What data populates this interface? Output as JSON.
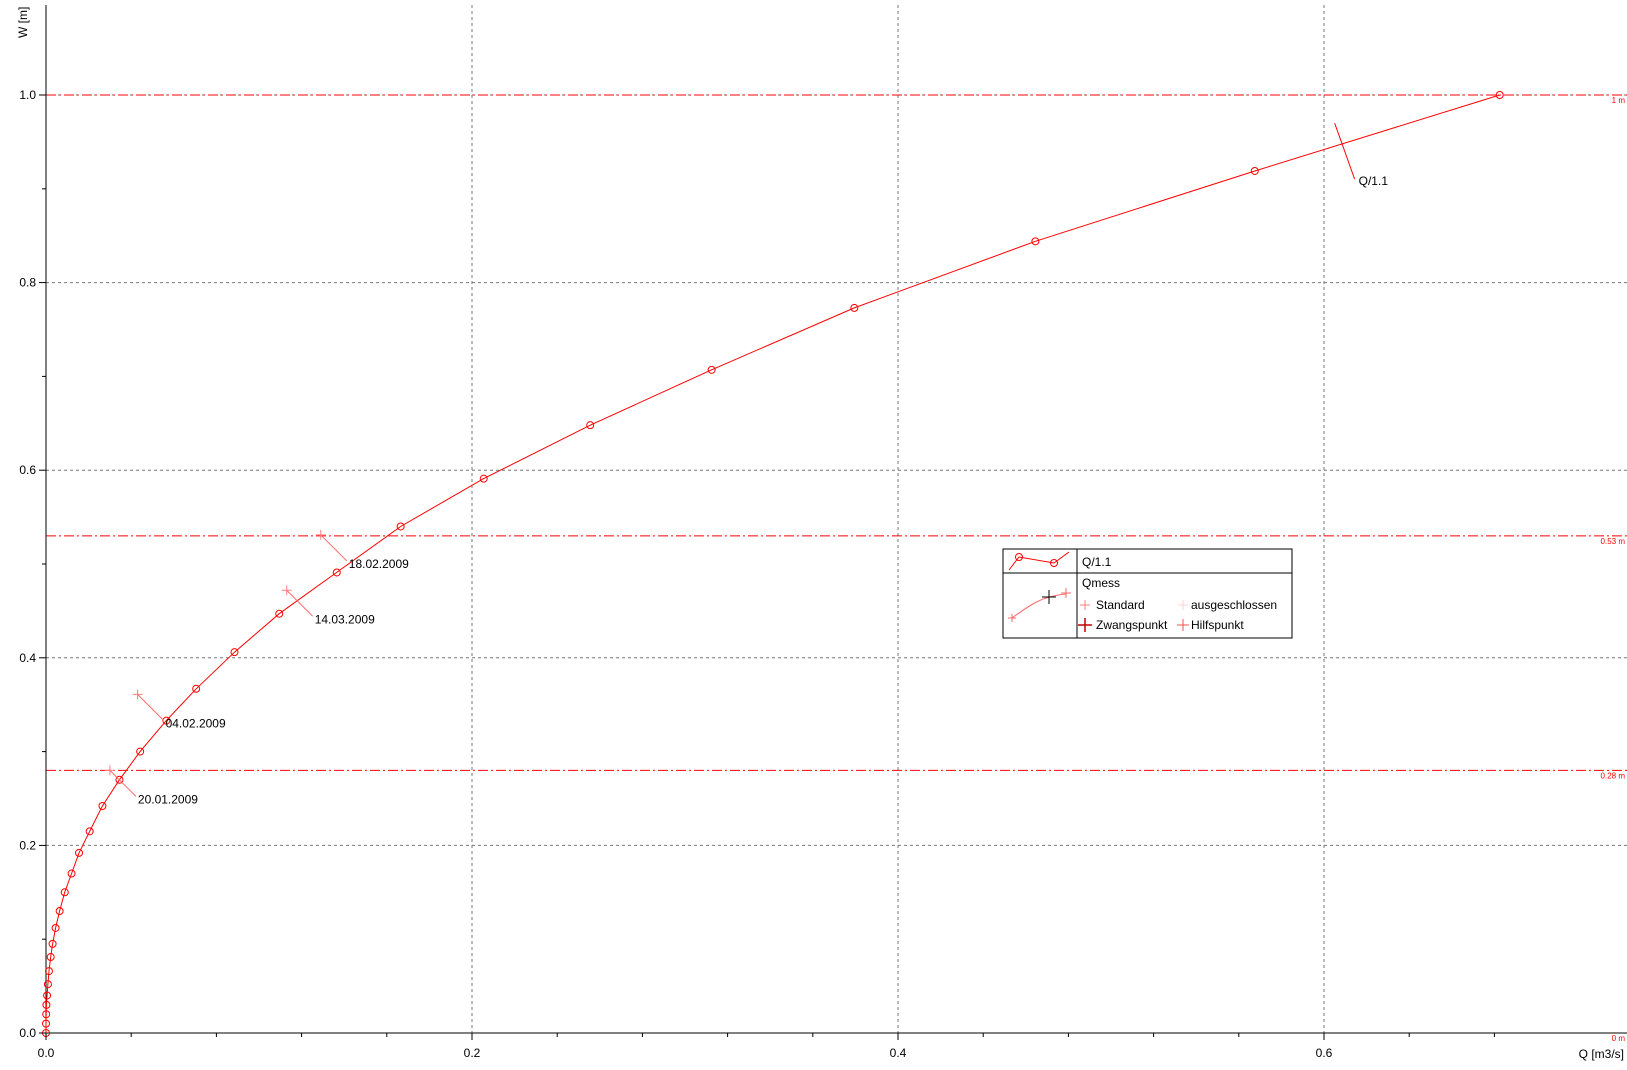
{
  "chart_data": {
    "type": "line",
    "title": "",
    "xlabel": "Q [m3/s]",
    "ylabel": "W [m]",
    "xlim": [
      0,
      0.71
    ],
    "ylim": [
      0,
      1.1
    ],
    "x_ticks": [
      0.0,
      0.2,
      0.4,
      0.6
    ],
    "y_ticks": [
      0.0,
      0.2,
      0.4,
      0.6,
      0.8,
      1.0
    ],
    "x_tick_labels": [
      "0.0",
      "0.2",
      "0.4",
      "0.6"
    ],
    "y_tick_labels": [
      "0.0",
      "0.2",
      "0.4",
      "0.6",
      "0.8",
      "1.0"
    ],
    "grid": true,
    "series": [
      {
        "name": "Q/1.1",
        "color": "#ff0000",
        "marker": "circle",
        "points": [
          [
            0.0,
            0.0
          ],
          [
            0.0,
            0.01
          ],
          [
            0.0001,
            0.02
          ],
          [
            0.0002,
            0.03
          ],
          [
            0.0005,
            0.04
          ],
          [
            0.0009,
            0.052
          ],
          [
            0.0014,
            0.066
          ],
          [
            0.0022,
            0.081
          ],
          [
            0.0031,
            0.095
          ],
          [
            0.0045,
            0.112
          ],
          [
            0.0064,
            0.13
          ],
          [
            0.0088,
            0.15
          ],
          [
            0.012,
            0.17
          ],
          [
            0.0155,
            0.192
          ],
          [
            0.0205,
            0.215
          ],
          [
            0.0265,
            0.242
          ],
          [
            0.0345,
            0.27
          ],
          [
            0.0442,
            0.3
          ],
          [
            0.0565,
            0.333
          ],
          [
            0.0705,
            0.367
          ],
          [
            0.0885,
            0.406
          ],
          [
            0.1095,
            0.447
          ],
          [
            0.1365,
            0.491
          ],
          [
            0.1665,
            0.54
          ],
          [
            0.2055,
            0.591
          ],
          [
            0.2555,
            0.648
          ],
          [
            0.3125,
            0.707
          ],
          [
            0.3795,
            0.773
          ],
          [
            0.4645,
            0.844
          ],
          [
            0.5675,
            0.919
          ],
          [
            0.6825,
            1.0
          ]
        ]
      }
    ],
    "measurements": [
      {
        "label": "18.02.2009",
        "q": 0.129,
        "w": 0.531
      },
      {
        "label": "14.03.2009",
        "q": 0.113,
        "w": 0.472
      },
      {
        "label": "04.02.2009",
        "q": 0.043,
        "w": 0.361
      },
      {
        "label": "20.01.2009",
        "q": 0.03,
        "w": 0.28
      }
    ],
    "curve_label": {
      "text": "Q/1.1",
      "q": 0.605,
      "w": 0.97
    },
    "reference_lines": [
      {
        "y": 1.0,
        "label": "1 m"
      },
      {
        "y": 0.53,
        "label": "0.53 m"
      },
      {
        "y": 0.28,
        "label": "0.28 m"
      },
      {
        "y": 0.0,
        "label": "0 m"
      }
    ],
    "legend": {
      "placement": "center-right",
      "entries": {
        "curve": "Q/1.1",
        "group": "Qmess",
        "standard": "Standard",
        "ausgeschlossen": "ausgeschlossen",
        "zwangspunkt": "Zwangspunkt",
        "hilfspunkt": "Hilfspunkt"
      }
    }
  }
}
